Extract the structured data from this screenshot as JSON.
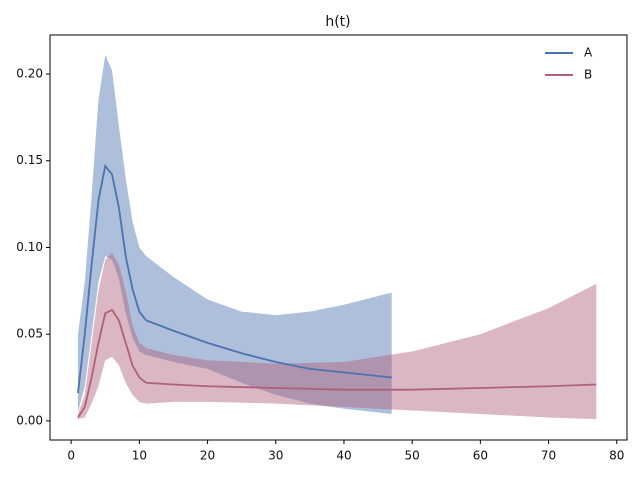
{
  "chart_data": {
    "type": "line",
    "title": "h(t)",
    "xlim": [
      -3.1,
      81.5
    ],
    "ylim": [
      -0.011,
      0.2225
    ],
    "xticks": [
      0,
      10,
      20,
      30,
      40,
      50,
      60,
      70,
      80
    ],
    "yticks": [
      {
        "value": 0,
        "label": "0.00"
      },
      {
        "value": 0.05,
        "label": "0.05"
      },
      {
        "value": 0.1,
        "label": "0.10"
      },
      {
        "value": 0.15,
        "label": "0.15"
      },
      {
        "value": 0.2,
        "label": "0.20"
      }
    ],
    "legend": "upper right",
    "series": [
      {
        "name": "A",
        "color": "#4c72b0",
        "x": [
          1,
          2,
          3,
          4,
          5,
          6,
          7,
          8,
          9,
          10,
          11,
          15,
          20,
          25,
          30,
          35,
          40,
          47
        ],
        "values": [
          0.016,
          0.05,
          0.09,
          0.127,
          0.147,
          0.142,
          0.123,
          0.095,
          0.076,
          0.063,
          0.058,
          0.052,
          0.045,
          0.039,
          0.034,
          0.03,
          0.028,
          0.025
        ],
        "upper": [
          0.05,
          0.08,
          0.13,
          0.185,
          0.211,
          0.202,
          0.17,
          0.14,
          0.115,
          0.1,
          0.095,
          0.083,
          0.07,
          0.063,
          0.061,
          0.063,
          0.067,
          0.074
        ],
        "lower": [
          0.005,
          0.02,
          0.05,
          0.08,
          0.095,
          0.093,
          0.082,
          0.062,
          0.048,
          0.04,
          0.038,
          0.034,
          0.03,
          0.022,
          0.015,
          0.01,
          0.007,
          0.004
        ]
      },
      {
        "name": "B",
        "color": "#b0607a",
        "x": [
          1,
          2,
          3,
          4,
          5,
          6,
          7,
          8,
          9,
          10,
          11,
          15,
          20,
          30,
          40,
          50,
          60,
          70,
          77
        ],
        "values": [
          0.002,
          0.008,
          0.025,
          0.045,
          0.062,
          0.064,
          0.058,
          0.045,
          0.032,
          0.025,
          0.022,
          0.021,
          0.02,
          0.019,
          0.018,
          0.018,
          0.019,
          0.02,
          0.021
        ],
        "upper": [
          0.004,
          0.015,
          0.045,
          0.075,
          0.093,
          0.097,
          0.09,
          0.075,
          0.055,
          0.045,
          0.042,
          0.038,
          0.035,
          0.033,
          0.034,
          0.04,
          0.05,
          0.065,
          0.079
        ],
        "lower": [
          0.001,
          0.002,
          0.01,
          0.02,
          0.035,
          0.037,
          0.032,
          0.022,
          0.015,
          0.011,
          0.01,
          0.011,
          0.011,
          0.01,
          0.008,
          0.006,
          0.004,
          0.002,
          0.001
        ]
      }
    ]
  }
}
